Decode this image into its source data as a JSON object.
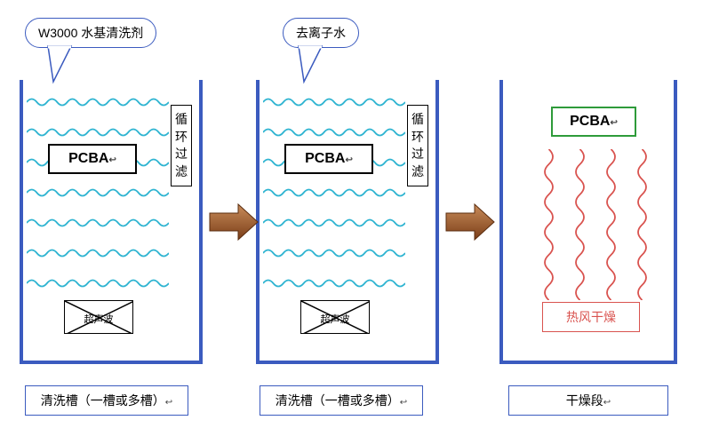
{
  "palette": {
    "frame": "#3b5bbf",
    "wave": "#2fb4d1",
    "heat": "#d9534f",
    "arrow_dark": "#7a3d18",
    "arrow_light": "#c98c5a"
  },
  "bubbles": {
    "left": "W3000 水基清洗剂",
    "mid": "去离子水"
  },
  "pcba_label": "PCBA",
  "cycle_text": "循环过滤",
  "ultra_label": "超声波",
  "dryer_label": "热风干燥",
  "captions": {
    "wash": "清洗槽（一槽或多槽）",
    "dry": "干燥段"
  },
  "waves": {
    "rows": 7,
    "cycles": 7
  },
  "heat": {
    "columns": 4,
    "cycles": 5
  }
}
